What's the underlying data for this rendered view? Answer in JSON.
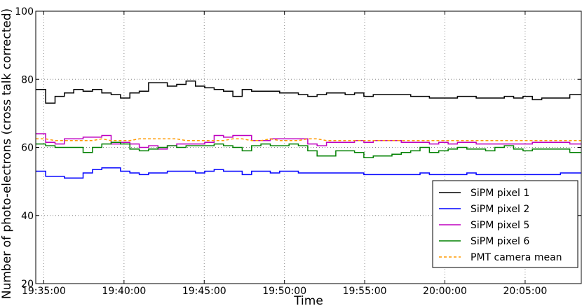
{
  "chart_data": {
    "type": "line",
    "title": "",
    "xlabel": "Time",
    "ylabel": "Number of photo-electrons (cross talk corrected)",
    "ylim": [
      20,
      100
    ],
    "xlim": [
      "19:34:30",
      "20:08:30"
    ],
    "grid": true,
    "legend_position": "bottom-right",
    "xticks": [
      "19:35:00",
      "19:40:00",
      "19:45:00",
      "19:50:00",
      "19:55:00",
      "20:00:00",
      "20:05:00"
    ],
    "yticks": [
      20,
      40,
      60,
      80,
      100
    ],
    "x": [
      "19:34:30",
      "19:35:07",
      "19:35:42",
      "19:36:17",
      "19:36:52",
      "19:37:27",
      "19:38:02",
      "19:38:37",
      "19:39:12",
      "19:39:47",
      "19:40:22",
      "19:40:57",
      "19:41:32",
      "19:42:07",
      "19:42:42",
      "19:43:17",
      "19:43:52",
      "19:44:27",
      "19:45:02",
      "19:45:37",
      "19:46:12",
      "19:46:47",
      "19:47:22",
      "19:47:57",
      "19:48:32",
      "19:49:07",
      "19:49:42",
      "19:50:17",
      "19:50:52",
      "19:51:27",
      "19:52:02",
      "19:52:37",
      "19:53:12",
      "19:53:47",
      "19:54:22",
      "19:54:57",
      "19:55:32",
      "19:56:07",
      "19:56:42",
      "19:57:17",
      "19:57:52",
      "19:58:27",
      "19:59:02",
      "19:59:37",
      "20:00:12",
      "20:00:47",
      "20:01:22",
      "20:01:57",
      "20:02:32",
      "20:03:07",
      "20:03:42",
      "20:04:17",
      "20:04:52",
      "20:05:27",
      "20:06:02",
      "20:06:37",
      "20:07:12",
      "20:07:47"
    ],
    "series": [
      {
        "name": "SiPM pixel 1",
        "color": "#000000",
        "style": "steps",
        "values": [
          77,
          73,
          75,
          76,
          77,
          76.5,
          77,
          76,
          75.5,
          74.5,
          76,
          76.5,
          79,
          79,
          78,
          78.5,
          79.5,
          78,
          77.5,
          77,
          76.5,
          75,
          77,
          76.5,
          76.5,
          76.5,
          76,
          76,
          75.5,
          75,
          75.5,
          76,
          76,
          75.5,
          76,
          75,
          75.5,
          75.5,
          75.5,
          75.5,
          75,
          75,
          74.5,
          74.5,
          74.5,
          75,
          75,
          74.5,
          74.5,
          74.5,
          75,
          74.5,
          75,
          74,
          74.5,
          74.5,
          74.5,
          75.5
        ]
      },
      {
        "name": "SiPM pixel 2",
        "color": "#0000ff",
        "style": "steps",
        "values": [
          53,
          51.5,
          51.5,
          51,
          51,
          52.5,
          53.5,
          54,
          54,
          53,
          52.5,
          52,
          52.5,
          52.5,
          53,
          53,
          53,
          52.5,
          53,
          53.5,
          53,
          53,
          52,
          53,
          53,
          52.5,
          53,
          53,
          52.5,
          52.5,
          52.5,
          52.5,
          52.5,
          52.5,
          52.5,
          52,
          52,
          52,
          52,
          52,
          52,
          52.5,
          52,
          52,
          52,
          52,
          52.5,
          52,
          52,
          52,
          52,
          52,
          52,
          52,
          52,
          52,
          52.5,
          52.5
        ]
      },
      {
        "name": "SiPM pixel 5",
        "color": "#bf00bf",
        "style": "steps",
        "values": [
          64,
          61.5,
          61,
          62.5,
          62.5,
          63,
          63,
          63.5,
          61,
          61.5,
          61,
          60,
          60.5,
          59.5,
          60.5,
          61,
          61,
          61,
          61.5,
          63.5,
          63,
          63.5,
          63.5,
          62,
          62,
          62.5,
          62.5,
          62.5,
          62.5,
          61,
          60.5,
          61.5,
          61.5,
          61.5,
          62,
          61.5,
          62,
          62,
          62,
          61.5,
          61.5,
          61.5,
          61,
          61.5,
          61,
          61.5,
          61.5,
          61,
          61,
          61,
          61,
          61,
          61,
          61.5,
          61.5,
          61.5,
          61.5,
          61
        ]
      },
      {
        "name": "SiPM pixel 6",
        "color": "#008000",
        "style": "steps",
        "values": [
          61,
          60.5,
          60,
          60,
          60,
          58.5,
          60,
          61,
          61.5,
          61,
          59.5,
          59,
          59.5,
          60,
          60.5,
          60,
          60.5,
          60.5,
          60.5,
          61,
          60.5,
          60,
          59,
          60.5,
          61,
          60.5,
          60.5,
          61,
          60.5,
          59,
          57.5,
          57.5,
          59,
          59,
          58.5,
          57,
          57.5,
          57.5,
          58,
          58.5,
          59,
          60,
          58.5,
          59,
          59.5,
          60,
          59.5,
          59.5,
          59,
          60,
          60.5,
          59.5,
          59,
          59.5,
          59.5,
          59.5,
          59.5,
          58.5
        ]
      },
      {
        "name": "PMT camera mean",
        "color": "#ff9900",
        "style": "dashed",
        "values": [
          62.5,
          62.5,
          62,
          62,
          62,
          62,
          62,
          62.5,
          62,
          62,
          62,
          62.5,
          62.5,
          62.5,
          62.5,
          62.5,
          62,
          62,
          62,
          62,
          62,
          62.5,
          62.5,
          62,
          62,
          62.5,
          62,
          62,
          62,
          62.5,
          62.5,
          62,
          62,
          62,
          62,
          62,
          62,
          62,
          62,
          62,
          62,
          62,
          62,
          62,
          62,
          62,
          62,
          62,
          62,
          62,
          62,
          62,
          62,
          62,
          62,
          62,
          62,
          62
        ]
      }
    ]
  }
}
